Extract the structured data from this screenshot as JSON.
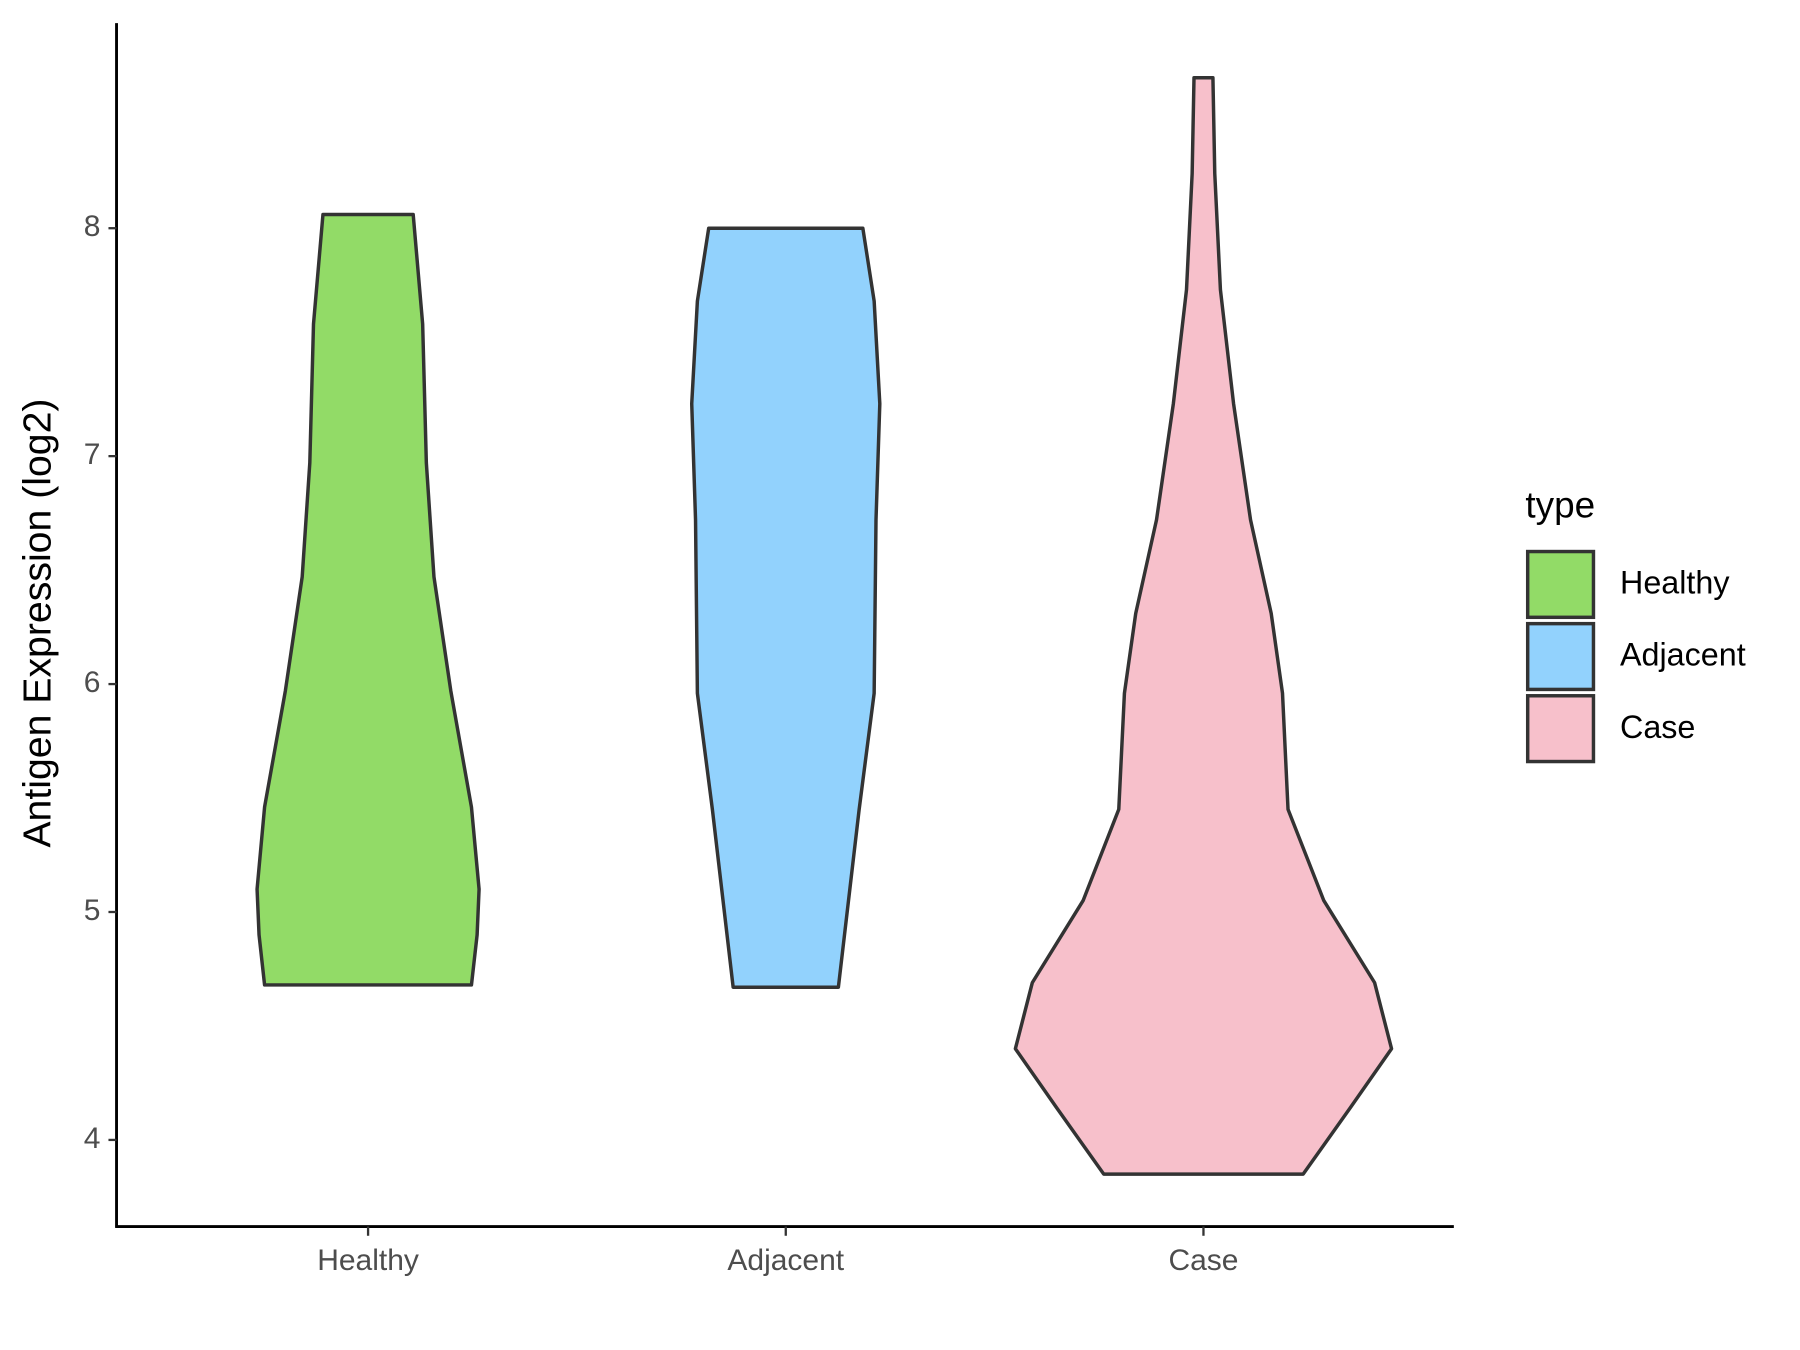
{
  "chart_data": {
    "type": "violin",
    "y_label": "Antigen Expression (log2)",
    "legend_title": "type",
    "legend_position": "right",
    "categories": [
      "Healthy",
      "Adjacent",
      "Case"
    ],
    "ylim": [
      3.62,
      8.9
    ],
    "yticks": [
      4,
      5,
      6,
      7,
      8
    ],
    "series": [
      {
        "name": "Healthy",
        "color": "#92db67",
        "y": [
          4.68,
          4.9,
          5.1,
          5.46,
          5.97,
          6.47,
          6.97,
          7.58,
          8.06
        ],
        "density": [
          0.55,
          0.58,
          0.59,
          0.55,
          0.44,
          0.35,
          0.31,
          0.29,
          0.24
        ]
      },
      {
        "name": "Adjacent",
        "color": "#92d2fd",
        "y": [
          4.67,
          5.45,
          5.96,
          6.72,
          7.23,
          7.68,
          8.0
        ],
        "density": [
          0.28,
          0.39,
          0.47,
          0.48,
          0.5,
          0.47,
          0.41
        ]
      },
      {
        "name": "Case",
        "color": "#f7c0cb",
        "y": [
          3.85,
          4.14,
          4.4,
          4.69,
          5.05,
          5.45,
          5.96,
          6.31,
          6.72,
          7.23,
          7.73,
          8.24,
          8.66
        ],
        "density": [
          0.53,
          0.78,
          1.0,
          0.91,
          0.64,
          0.45,
          0.42,
          0.36,
          0.25,
          0.16,
          0.09,
          0.06,
          0.05
        ]
      }
    ]
  }
}
